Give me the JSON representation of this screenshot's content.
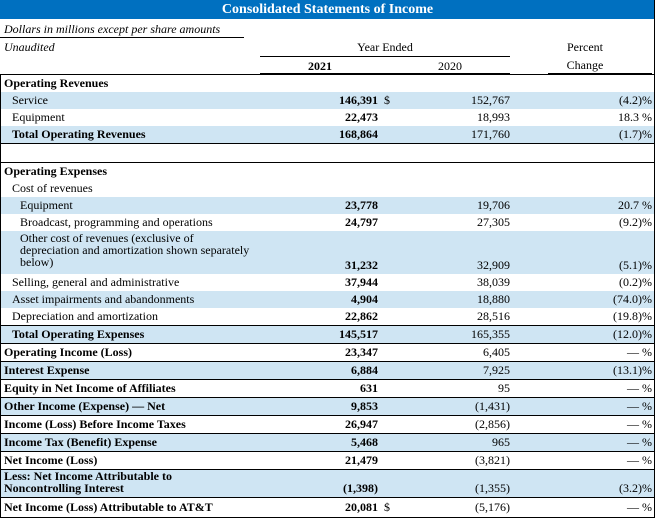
{
  "title": "Consolidated Statements of Income",
  "subtitle": "Dollars in millions except per share amounts",
  "unaudited": "Unaudited",
  "headers": {
    "year_ended": "Year Ended",
    "y2021": "2021",
    "y2020": "2020",
    "pct1": "Percent",
    "pct2": "Change"
  },
  "rows": [
    {
      "label": "Operating Revenues",
      "v21": "",
      "d21": "",
      "v20": "",
      "pct": ""
    },
    {
      "label": "Service",
      "v21": "146,391",
      "d21": "$",
      "v20": "152,767",
      "pct": "(4.2)%"
    },
    {
      "label": "Equipment",
      "v21": "22,473",
      "d21": "",
      "v20": "18,993",
      "pct": "18.3 %"
    },
    {
      "label": "Total Operating Revenues",
      "v21": "168,864",
      "d21": "",
      "v20": "171,760",
      "pct": "(1.7)%"
    },
    {
      "label": "Operating Expenses",
      "v21": "",
      "d21": "",
      "v20": "",
      "pct": ""
    },
    {
      "label": "Cost of revenues",
      "v21": "",
      "d21": "",
      "v20": "",
      "pct": ""
    },
    {
      "label": "Equipment",
      "v21": "23,778",
      "d21": "",
      "v20": "19,706",
      "pct": "20.7 %"
    },
    {
      "label": "Broadcast, programming and operations",
      "v21": "24,797",
      "d21": "",
      "v20": "27,305",
      "pct": "(9.2)%"
    },
    {
      "label": "Other cost of revenues (exclusive of depreciation and amortization shown separately below)",
      "v21": "31,232",
      "d21": "",
      "v20": "32,909",
      "pct": "(5.1)%"
    },
    {
      "label": "Selling, general and administrative",
      "v21": "37,944",
      "d21": "",
      "v20": "38,039",
      "pct": "(0.2)%"
    },
    {
      "label": "Asset impairments and abandonments",
      "v21": "4,904",
      "d21": "",
      "v20": "18,880",
      "pct": "(74.0)%"
    },
    {
      "label": "Depreciation and amortization",
      "v21": "22,862",
      "d21": "",
      "v20": "28,516",
      "pct": "(19.8)%"
    },
    {
      "label": "Total Operating Expenses",
      "v21": "145,517",
      "d21": "",
      "v20": "165,355",
      "pct": "(12.0)%"
    },
    {
      "label": "Operating Income (Loss)",
      "v21": "23,347",
      "d21": "",
      "v20": "6,405",
      "pct": "— %"
    },
    {
      "label": "Interest Expense",
      "v21": "6,884",
      "d21": "",
      "v20": "7,925",
      "pct": "(13.1)%"
    },
    {
      "label": "Equity in Net Income of Affiliates",
      "v21": "631",
      "d21": "",
      "v20": "95",
      "pct": "— %"
    },
    {
      "label": "Other Income (Expense) — Net",
      "v21": "9,853",
      "d21": "",
      "v20": "(1,431)",
      "pct": "— %"
    },
    {
      "label": "Income (Loss) Before Income Taxes",
      "v21": "26,947",
      "d21": "",
      "v20": "(2,856)",
      "pct": "— %"
    },
    {
      "label": "Income Tax (Benefit) Expense",
      "v21": "5,468",
      "d21": "",
      "v20": "965",
      "pct": "— %"
    },
    {
      "label": "Net Income (Loss)",
      "v21": "21,479",
      "d21": "",
      "v20": "(3,821)",
      "pct": "— %"
    },
    {
      "label": "Less: Net Income Attributable to Noncontrolling Interest",
      "v21": "(1,398)",
      "d21": "",
      "v20": "(1,355)",
      "pct": "(3.2)%"
    },
    {
      "label": "Net Income (Loss) Attributable to AT&T",
      "v21": "20,081",
      "d21": "$",
      "v20": "(5,176)",
      "pct": "— %"
    }
  ]
}
